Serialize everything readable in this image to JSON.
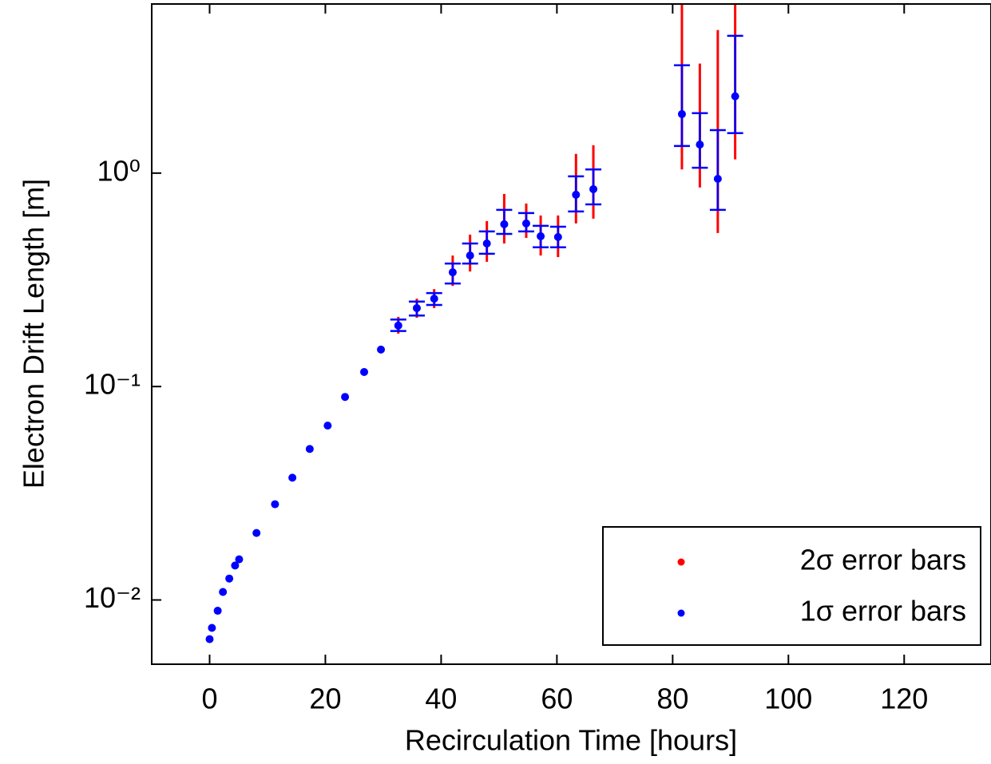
{
  "chart_data": {
    "type": "scatter",
    "xlabel": "Recirculation Time [hours]",
    "ylabel": "Electron Drift Length [m]",
    "xlim": [
      -10,
      135
    ],
    "ylim": [
      0.005,
      6.2
    ],
    "log_y": true,
    "xticks": [
      0,
      20,
      40,
      60,
      80,
      100,
      120
    ],
    "yticks": [
      {
        "value": 0.01,
        "label": "10⁻²"
      },
      {
        "value": 0.1,
        "label": "10⁻¹"
      },
      {
        "value": 1,
        "label": "10⁰"
      }
    ],
    "marker_color": "#0000ff",
    "legend": "lower right",
    "x": [
      0,
      0.4,
      1.4,
      2.3,
      3.4,
      4.4,
      5.1,
      8.1,
      11.3,
      14.3,
      17.3,
      20.4,
      23.4,
      26.7,
      29.6,
      32.6,
      35.8,
      38.8,
      42,
      45,
      47.9,
      50.9,
      54.7,
      57.2,
      60.2,
      63.3,
      66.3,
      81.6,
      84.7,
      87.8,
      90.8
    ],
    "values": [
      0.00655,
      0.0074,
      0.0089,
      0.0109,
      0.0126,
      0.0145,
      0.0155,
      0.0206,
      0.0281,
      0.0374,
      0.051,
      0.0656,
      0.0894,
      0.117,
      0.149,
      0.193,
      0.233,
      0.258,
      0.343,
      0.411,
      0.468,
      0.576,
      0.581,
      0.506,
      0.502,
      0.792,
      0.841,
      1.89,
      1.36,
      0.94,
      2.29
    ],
    "series": [
      {
        "name": "2σ error bars",
        "color": "#ff0000",
        "low": [
          null,
          null,
          null,
          null,
          null,
          null,
          null,
          null,
          null,
          null,
          null,
          null,
          null,
          null,
          null,
          0.177,
          0.21,
          0.233,
          0.296,
          0.346,
          0.384,
          0.468,
          0.497,
          0.411,
          0.404,
          0.581,
          0.612,
          1.04,
          0.856,
          0.524,
          1.16
        ],
        "high": [
          null,
          null,
          null,
          null,
          null,
          null,
          null,
          null,
          null,
          null,
          null,
          null,
          null,
          null,
          null,
          0.212,
          0.258,
          0.286,
          0.411,
          0.515,
          0.596,
          0.799,
          0.72,
          0.633,
          0.633,
          1.23,
          1.35,
          7,
          3.26,
          4.68,
          8
        ]
      },
      {
        "name": "1σ error bars",
        "color": "#0000ff",
        "low": [
          null,
          null,
          null,
          null,
          null,
          null,
          null,
          null,
          null,
          null,
          null,
          null,
          null,
          null,
          null,
          0.182,
          0.215,
          0.241,
          0.304,
          0.377,
          0.419,
          0.519,
          0.533,
          0.449,
          0.449,
          0.661,
          0.714,
          1.34,
          1.06,
          0.673,
          1.54
        ],
        "high": [
          null,
          null,
          null,
          null,
          null,
          null,
          null,
          null,
          null,
          null,
          null,
          null,
          null,
          null,
          null,
          0.206,
          0.25,
          0.274,
          0.377,
          0.468,
          0.533,
          0.673,
          0.65,
          0.566,
          0.561,
          0.966,
          1.04,
          3.2,
          1.91,
          1.59,
          4.4
        ]
      }
    ]
  }
}
